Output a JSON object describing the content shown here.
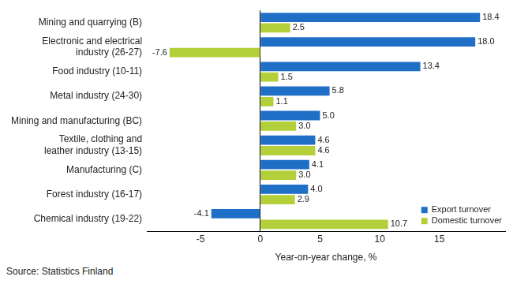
{
  "chart_data": {
    "type": "bar",
    "orientation": "horizontal",
    "categories": [
      "Mining and quarrying (B)",
      "Electronic and electrical\nindustry (26-27)",
      "Food industry (10-11)",
      "Metal industry (24-30)",
      "Mining and manufacturing (BC)",
      "Textile, clothing and\nleather industry (13-15)",
      "Manufacturing (C)",
      "Forest industry (16-17)",
      "Chemical industry (19-22)"
    ],
    "series": [
      {
        "name": "Export turnover",
        "color": "#1f6fc6",
        "values": [
          18.4,
          18,
          13.4,
          5.8,
          5,
          4.6,
          4.1,
          4,
          -4.1
        ],
        "value_labels": [
          "18.4",
          "18.0",
          "13.4",
          "5.8",
          "5.0",
          "4.6",
          "4.1",
          "4.0",
          "-4.1"
        ]
      },
      {
        "name": "Domestic turnover",
        "color": "#b3cf3a",
        "values": [
          2.5,
          -7.6,
          1.5,
          1.1,
          3,
          4.6,
          3,
          2.9,
          10.7
        ],
        "value_labels": [
          "2.5",
          "-7.6",
          "1.5",
          "1.1",
          "3.0",
          "4.6",
          "3.0",
          "2.9",
          "10.7"
        ]
      }
    ],
    "x_label": "Year-on-year change, %",
    "xlim": [
      -9.5,
      20.5
    ],
    "xticks": [
      -5,
      0,
      5,
      10,
      15
    ],
    "grid": false,
    "legend": "lower right",
    "data_labels": true,
    "source": "Source: Statistics Finland"
  }
}
